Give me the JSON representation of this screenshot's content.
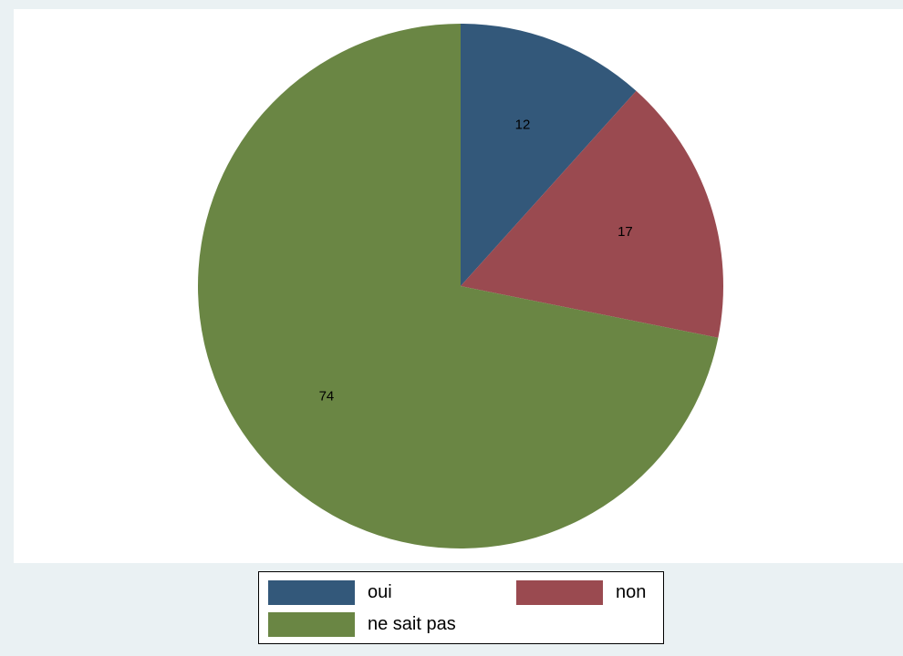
{
  "chart_data": {
    "type": "pie",
    "title": "",
    "start_angle_deg": 90,
    "direction": "clockwise",
    "slices": [
      {
        "label": "oui",
        "value": 12,
        "color": "#33587a"
      },
      {
        "label": "non",
        "value": 17,
        "color": "#9a4a50"
      },
      {
        "label": "ne sait pas",
        "value": 74,
        "color": "#6a8644"
      }
    ],
    "data_labels": [
      "12",
      "17",
      "74"
    ],
    "legend": {
      "position": "bottom",
      "entries": [
        "oui",
        "non",
        "ne sait pas"
      ]
    }
  },
  "colors": {
    "outer_background": "#eaf1f3",
    "plot_background": "#ffffff"
  }
}
